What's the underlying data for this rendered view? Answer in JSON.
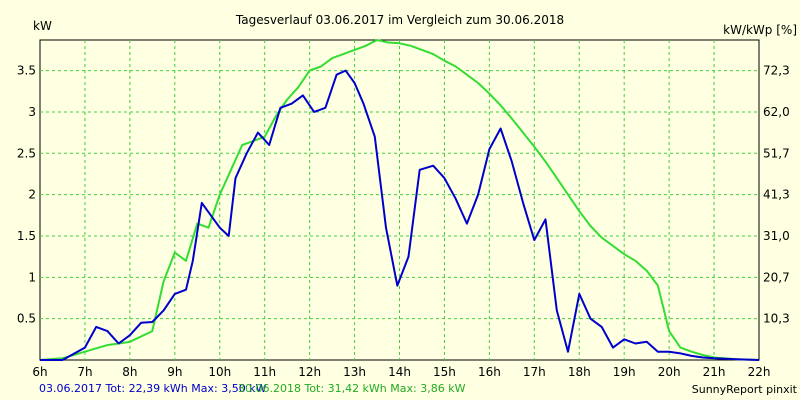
{
  "chart_data": {
    "type": "line",
    "title": "Tagesverlauf 03.06.2017 im Vergleich zum 30.06.2018",
    "ylabel_left": "kW",
    "ylabel_right": "kW/kWp [%]",
    "x_ticks": [
      "6h",
      "7h",
      "8h",
      "9h",
      "10h",
      "11h",
      "12h",
      "13h",
      "14h",
      "15h",
      "16h",
      "17h",
      "18h",
      "19h",
      "20h",
      "21h",
      "22h"
    ],
    "x_range": [
      6,
      22
    ],
    "y_ticks_left": [
      "0.5",
      "1",
      "1.5",
      "2",
      "2.5",
      "3",
      "3.5"
    ],
    "y_ticks_right": [
      "10,3",
      "20,7",
      "31,0",
      "41,3",
      "51,7",
      "62,0",
      "72,3"
    ],
    "ylim": [
      0,
      3.87
    ],
    "grid": true,
    "series": [
      {
        "name": "03.06.2017",
        "color": "#0000cc",
        "x": [
          6.0,
          6.5,
          7.0,
          7.25,
          7.5,
          7.75,
          8.0,
          8.25,
          8.5,
          8.75,
          9.0,
          9.25,
          9.4,
          9.6,
          9.8,
          10.0,
          10.2,
          10.35,
          10.6,
          10.85,
          11.1,
          11.35,
          11.6,
          11.85,
          12.1,
          12.35,
          12.6,
          12.8,
          13.0,
          13.2,
          13.45,
          13.7,
          13.95,
          14.2,
          14.45,
          14.75,
          15.0,
          15.25,
          15.5,
          15.75,
          16.0,
          16.25,
          16.5,
          16.75,
          17.0,
          17.25,
          17.5,
          17.75,
          18.0,
          18.25,
          18.5,
          18.75,
          19.0,
          19.25,
          19.5,
          19.75,
          20.0,
          20.25,
          20.5,
          20.75,
          21.0,
          21.5,
          22.0
        ],
        "values": [
          0,
          0,
          0.15,
          0.4,
          0.35,
          0.2,
          0.3,
          0.45,
          0.46,
          0.6,
          0.8,
          0.85,
          1.2,
          1.9,
          1.75,
          1.6,
          1.5,
          2.2,
          2.5,
          2.75,
          2.6,
          3.05,
          3.1,
          3.2,
          3.0,
          3.05,
          3.45,
          3.5,
          3.35,
          3.1,
          2.7,
          1.6,
          0.9,
          1.25,
          2.3,
          2.35,
          2.2,
          1.95,
          1.65,
          2.0,
          2.55,
          2.8,
          2.4,
          1.9,
          1.45,
          1.7,
          0.6,
          0.1,
          0.8,
          0.5,
          0.4,
          0.15,
          0.25,
          0.2,
          0.22,
          0.1,
          0.1,
          0.08,
          0.05,
          0.03,
          0.02,
          0.01,
          0
        ]
      },
      {
        "name": "30.06.2018",
        "color": "#33dd33",
        "x": [
          6.0,
          6.5,
          7.0,
          7.5,
          8.0,
          8.5,
          8.75,
          9.0,
          9.25,
          9.5,
          9.75,
          10.0,
          10.25,
          10.5,
          10.75,
          11.0,
          11.25,
          11.5,
          11.75,
          12.0,
          12.25,
          12.5,
          12.75,
          13.0,
          13.25,
          13.5,
          13.75,
          14.0,
          14.25,
          14.5,
          14.75,
          15.0,
          15.25,
          15.5,
          15.75,
          16.0,
          16.25,
          16.5,
          16.75,
          17.0,
          17.25,
          17.5,
          17.75,
          18.0,
          18.25,
          18.5,
          18.75,
          19.0,
          19.25,
          19.5,
          19.75,
          20.0,
          20.25,
          20.5,
          20.75,
          21.0,
          21.5,
          22.0
        ],
        "values": [
          0,
          0.02,
          0.1,
          0.18,
          0.22,
          0.35,
          0.95,
          1.3,
          1.2,
          1.65,
          1.6,
          2.0,
          2.3,
          2.6,
          2.65,
          2.7,
          2.95,
          3.15,
          3.3,
          3.5,
          3.55,
          3.65,
          3.7,
          3.75,
          3.8,
          3.87,
          3.84,
          3.83,
          3.8,
          3.75,
          3.7,
          3.62,
          3.55,
          3.45,
          3.35,
          3.22,
          3.08,
          2.92,
          2.75,
          2.58,
          2.4,
          2.2,
          2.0,
          1.8,
          1.62,
          1.48,
          1.38,
          1.28,
          1.2,
          1.08,
          0.9,
          0.35,
          0.15,
          0.1,
          0.06,
          0.03,
          0.01,
          0
        ]
      }
    ]
  },
  "footer": {
    "series1_text": "03.06.2017 Tot: 22,39 kWh Max: 3,50 kW",
    "series2_text": "30.06.2018 Tot: 31,42 kWh Max: 3,86 kW",
    "brand": "SunnyReport pinxit"
  }
}
